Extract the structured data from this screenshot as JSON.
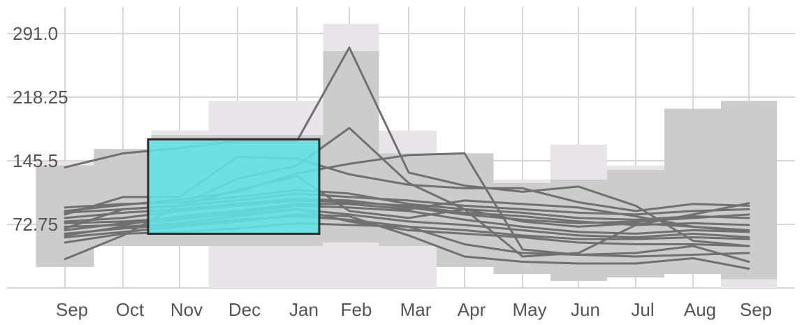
{
  "colors": {
    "background": "#ffffff",
    "grid": "#d6d6d6",
    "outer_band": "#e8e4e8",
    "inner_band": "#cccccc",
    "series_line": "#707070",
    "selection_fill": "#5ee3e6",
    "selection_stroke": "#2a2a2a",
    "tick_text": "#555555"
  },
  "chart_data": {
    "type": "line",
    "title": "",
    "xlabel": "",
    "ylabel": "",
    "categories": [
      "Sep",
      "Oct",
      "Nov",
      "Dec",
      "Jan",
      "Feb",
      "Mar",
      "Apr",
      "May",
      "Jun",
      "Jul",
      "Aug",
      "Sep"
    ],
    "y_ticks": [
      {
        "value": 291.0,
        "label": "291.0"
      },
      {
        "value": 218.25,
        "label": "218.25"
      },
      {
        "value": 145.5,
        "label": "145.5"
      },
      {
        "value": 72.75,
        "label": "72.75"
      }
    ],
    "ylim": [
      0,
      291
    ],
    "grid": true,
    "legend": "none",
    "bands": {
      "outer_max": [
        145,
        159,
        180,
        214,
        214,
        302,
        180,
        154,
        124,
        164,
        140,
        205,
        214
      ],
      "outer_min": [
        24,
        48,
        48,
        0,
        0,
        0,
        0,
        24,
        16,
        8,
        12,
        16,
        0
      ],
      "inner_max": [
        140,
        159,
        175,
        175,
        175,
        271,
        154,
        154,
        120,
        124,
        135,
        205,
        214
      ],
      "inner_min": [
        24,
        48,
        48,
        48,
        48,
        52,
        48,
        24,
        16,
        8,
        12,
        16,
        10
      ]
    },
    "selection": {
      "from": "Nov",
      "to": "Jan",
      "y_range": [
        62,
        170
      ]
    },
    "series": [
      {
        "values": [
          138,
          154,
          160,
          168,
          168,
          275,
          132,
          117,
          110,
          116,
          94,
          54,
          48
        ]
      },
      {
        "values": [
          33,
          60,
          95,
          125,
          140,
          183,
          120,
          90,
          36,
          40,
          72,
          84,
          97
        ]
      },
      {
        "values": [
          88,
          95,
          101,
          110,
          131,
          142,
          152,
          154,
          44,
          38,
          40,
          48,
          30
        ]
      },
      {
        "values": [
          84,
          104,
          104,
          150,
          148,
          130,
          118,
          114,
          114,
          98,
          88,
          96,
          94
        ]
      },
      {
        "values": [
          68,
          90,
          94,
          112,
          128,
          88,
          80,
          90,
          76,
          70,
          74,
          70,
          66
        ]
      },
      {
        "values": [
          60,
          70,
          74,
          82,
          90,
          76,
          66,
          62,
          58,
          52,
          50,
          50,
          48
        ]
      },
      {
        "values": [
          74,
          76,
          80,
          84,
          90,
          84,
          76,
          72,
          66,
          60,
          58,
          62,
          58
        ]
      },
      {
        "values": [
          52,
          62,
          64,
          68,
          74,
          72,
          70,
          50,
          40,
          38,
          36,
          38,
          40
        ]
      },
      {
        "values": [
          80,
          86,
          90,
          96,
          102,
          100,
          92,
          84,
          78,
          74,
          76,
          80,
          84
        ]
      },
      {
        "values": [
          66,
          74,
          78,
          86,
          94,
          92,
          88,
          78,
          70,
          64,
          62,
          66,
          64
        ]
      },
      {
        "values": [
          58,
          64,
          70,
          76,
          84,
          82,
          60,
          36,
          30,
          28,
          28,
          34,
          22
        ]
      },
      {
        "values": [
          92,
          96,
          98,
          104,
          112,
          108,
          96,
          90,
          86,
          80,
          78,
          82,
          80
        ]
      },
      {
        "values": [
          70,
          72,
          82,
          88,
          96,
          96,
          90,
          100,
          96,
          92,
          82,
          70,
          64
        ]
      },
      {
        "values": [
          76,
          80,
          88,
          94,
          100,
          98,
          94,
          86,
          82,
          76,
          72,
          74,
          72
        ]
      },
      {
        "values": [
          62,
          68,
          72,
          78,
          82,
          78,
          70,
          66,
          60,
          56,
          56,
          58,
          56
        ]
      },
      {
        "values": [
          86,
          90,
          94,
          100,
          108,
          104,
          100,
          94,
          90,
          86,
          84,
          88,
          90
        ]
      }
    ]
  }
}
